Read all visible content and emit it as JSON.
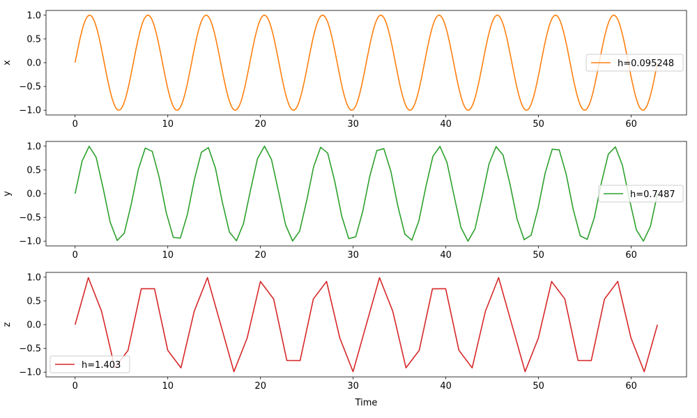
{
  "chart_data": [
    {
      "type": "line",
      "ylabel": "x",
      "xlabel": "",
      "xlim": [
        -3.14,
        65.97
      ],
      "ylim": [
        -1.1,
        1.1
      ],
      "xticks": [
        0,
        10,
        20,
        30,
        40,
        50,
        60
      ],
      "yticks": [
        -1.0,
        -0.5,
        0.0,
        0.5,
        1.0
      ],
      "legend_position": "center-right",
      "series": [
        {
          "name": "h=0.095248",
          "color": "#ff7f0e",
          "function": "sin",
          "x_range": [
            0,
            62.83
          ],
          "num_points": 660
        }
      ]
    },
    {
      "type": "line",
      "ylabel": "y",
      "xlabel": "",
      "xlim": [
        -3.14,
        65.97
      ],
      "ylim": [
        -1.1,
        1.1
      ],
      "xticks": [
        0,
        10,
        20,
        30,
        40,
        50,
        60
      ],
      "yticks": [
        -1.0,
        -0.5,
        0.0,
        0.5,
        1.0
      ],
      "legend_position": "center-right",
      "series": [
        {
          "name": "h=0.7487",
          "color": "#2ca02c",
          "function": "sin",
          "x_range": [
            0,
            62.83
          ],
          "num_points": 84
        }
      ]
    },
    {
      "type": "line",
      "ylabel": "z",
      "xlabel": "Time",
      "xlim": [
        -3.14,
        65.97
      ],
      "ylim": [
        -1.1,
        1.1
      ],
      "xticks": [
        0,
        10,
        20,
        30,
        40,
        50,
        60
      ],
      "yticks": [
        -1.0,
        -0.5,
        0.0,
        0.5,
        1.0
      ],
      "legend_position": "lower-left",
      "series": [
        {
          "name": "h=1.403",
          "color": "#d62728",
          "function": "sin",
          "x_range": [
            0,
            62.83
          ],
          "num_points": 45
        }
      ]
    }
  ]
}
